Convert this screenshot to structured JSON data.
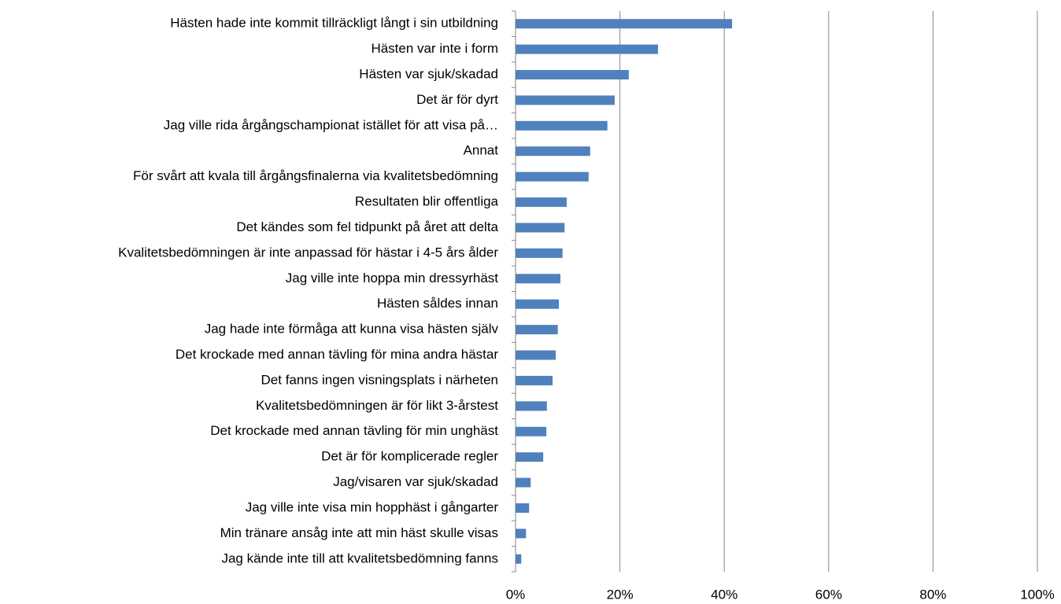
{
  "chart_data": {
    "type": "barh",
    "categories": [
      "Hästen hade inte kommit tillräckligt långt i sin utbildning",
      "Hästen var inte i form",
      "Hästen var sjuk/skadad",
      "Det är för dyrt",
      "Jag ville rida årgångschampionat istället för att visa på…",
      "Annat",
      "För svårt att kvala till årgångsfinalerna via kvalitetsbedömning",
      "Resultaten blir offentliga",
      "Det kändes som fel tidpunkt på året att delta",
      "Kvalitetsbedömningen är inte anpassad för hästar i 4-5 års ålder",
      "Jag ville inte hoppa min dressyrhäst",
      "Hästen såldes innan",
      "Jag hade inte förmåga att kunna visa hästen själv",
      "Det krockade med annan tävling för mina andra hästar",
      "Det fanns ingen visningsplats i närheten",
      "Kvalitetsbedömningen är för likt 3-årstest",
      "Det krockade med annan tävling för min unghäst",
      "Det är för komplicerade regler",
      "Jag/visaren var sjuk/skadad",
      "Jag ville inte visa min hopphäst i gångarter",
      "Min tränare ansåg inte att min häst skulle visas",
      "Jag kände inte till att kvalitetsbedömning fanns"
    ],
    "values": [
      41.5,
      27.3,
      21.7,
      19.0,
      17.6,
      14.3,
      14.0,
      9.8,
      9.4,
      9.0,
      8.6,
      8.3,
      8.1,
      7.7,
      7.1,
      6.0,
      5.9,
      5.3,
      2.9,
      2.6,
      2.0,
      1.1
    ],
    "color": "#4f81bd",
    "xlim": [
      0,
      100
    ],
    "xticks": [
      {
        "value": 0,
        "label": "0%"
      },
      {
        "value": 20,
        "label": "20%"
      },
      {
        "value": 40,
        "label": "40%"
      },
      {
        "value": 60,
        "label": "60%"
      },
      {
        "value": 80,
        "label": "80%"
      },
      {
        "value": 100,
        "label": "100%"
      }
    ],
    "grid": true
  }
}
